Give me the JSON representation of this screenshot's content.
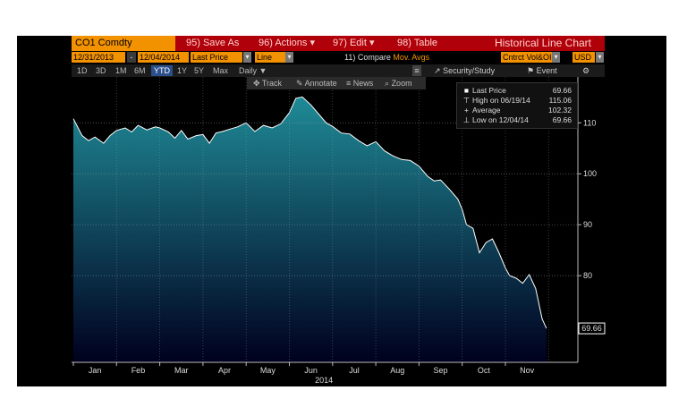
{
  "header": {
    "ticker": "CO1 Comdty",
    "save_as": "95) Save As",
    "actions": "96) Actions",
    "edit": "97) Edit",
    "table": "98) Table",
    "chart_title": "Historical Line Chart"
  },
  "options": {
    "start_date": "12/31/2013",
    "sep": "-",
    "end_date": "12/04/2014",
    "field": "Last Price",
    "style": "Line",
    "compare_prefix": "11)",
    "compare": "Compare",
    "mov_avgs": "Mov. Avgs",
    "contract": "Cntrct Vol&OI",
    "currency": "USD"
  },
  "ranges": {
    "items": [
      "1D",
      "3D",
      "1M",
      "6M",
      "YTD",
      "1Y",
      "5Y",
      "Max"
    ],
    "active": "YTD",
    "frequency": "Daily"
  },
  "tools": {
    "security_study": "Security/Study",
    "event": "Event"
  },
  "zoom_toolbar": {
    "track": "Track",
    "annotate": "Annotate",
    "news": "News",
    "zoom": "Zoom"
  },
  "legend": {
    "last_price_label": "Last Price",
    "last_price_value": "69.66",
    "high_label": "High on 06/19/14",
    "high_value": "115.06",
    "average_label": "Average",
    "average_value": "102.32",
    "low_label": "Low on 12/04/14",
    "low_value": "69.66"
  },
  "colors": {
    "accent_orange": "#f39200",
    "toolbar_red": "#b0000a",
    "area_top": "#1f8a96",
    "area_bottom": "#00001e",
    "line": "#ffffff"
  },
  "chart_data": {
    "type": "area",
    "xlabel": "2014",
    "ylim": [
      63,
      119
    ],
    "yticks": [
      80,
      90,
      100,
      110
    ],
    "month_labels": [
      "Jan",
      "Feb",
      "Mar",
      "Apr",
      "May",
      "Jun",
      "Jul",
      "Aug",
      "Sep",
      "Oct",
      "Nov"
    ],
    "last_value_label": "69.66",
    "grid": true,
    "series": [
      {
        "name": "Last Price",
        "x": [
          0.0,
          0.2,
          0.35,
          0.5,
          0.7,
          0.85,
          1.0,
          1.2,
          1.35,
          1.5,
          1.7,
          1.9,
          2.0,
          2.2,
          2.35,
          2.5,
          2.65,
          2.85,
          3.0,
          3.15,
          3.3,
          3.45,
          3.6,
          3.8,
          4.0,
          4.2,
          4.4,
          4.6,
          4.8,
          5.0,
          5.15,
          5.3,
          5.5,
          5.7,
          5.85,
          6.0,
          6.2,
          6.4,
          6.6,
          6.8,
          7.0,
          7.2,
          7.4,
          7.6,
          7.8,
          8.0,
          8.2,
          8.35,
          8.5,
          8.7,
          8.9,
          9.0,
          9.1,
          9.25,
          9.4,
          9.55,
          9.7,
          9.85,
          10.0,
          10.1,
          10.25,
          10.4,
          10.55,
          10.7,
          10.85,
          10.95
        ],
        "values": [
          110.8,
          107.5,
          106.5,
          107.2,
          106.0,
          107.5,
          108.5,
          109.0,
          108.2,
          109.5,
          108.6,
          109.2,
          109.0,
          108.2,
          107.0,
          108.5,
          106.8,
          107.5,
          107.7,
          106.0,
          108.0,
          108.3,
          108.7,
          109.2,
          110.0,
          108.3,
          109.5,
          109.0,
          109.8,
          112.0,
          114.8,
          115.06,
          113.5,
          111.5,
          110.0,
          109.3,
          108.0,
          107.8,
          106.5,
          105.5,
          106.3,
          104.5,
          103.5,
          102.8,
          102.6,
          101.5,
          99.5,
          98.6,
          98.8,
          97.0,
          95.0,
          93.0,
          90.0,
          89.3,
          84.5,
          86.5,
          87.2,
          84.5,
          81.5,
          80.0,
          79.5,
          78.5,
          80.2,
          77.5,
          71.5,
          69.66
        ]
      }
    ]
  }
}
